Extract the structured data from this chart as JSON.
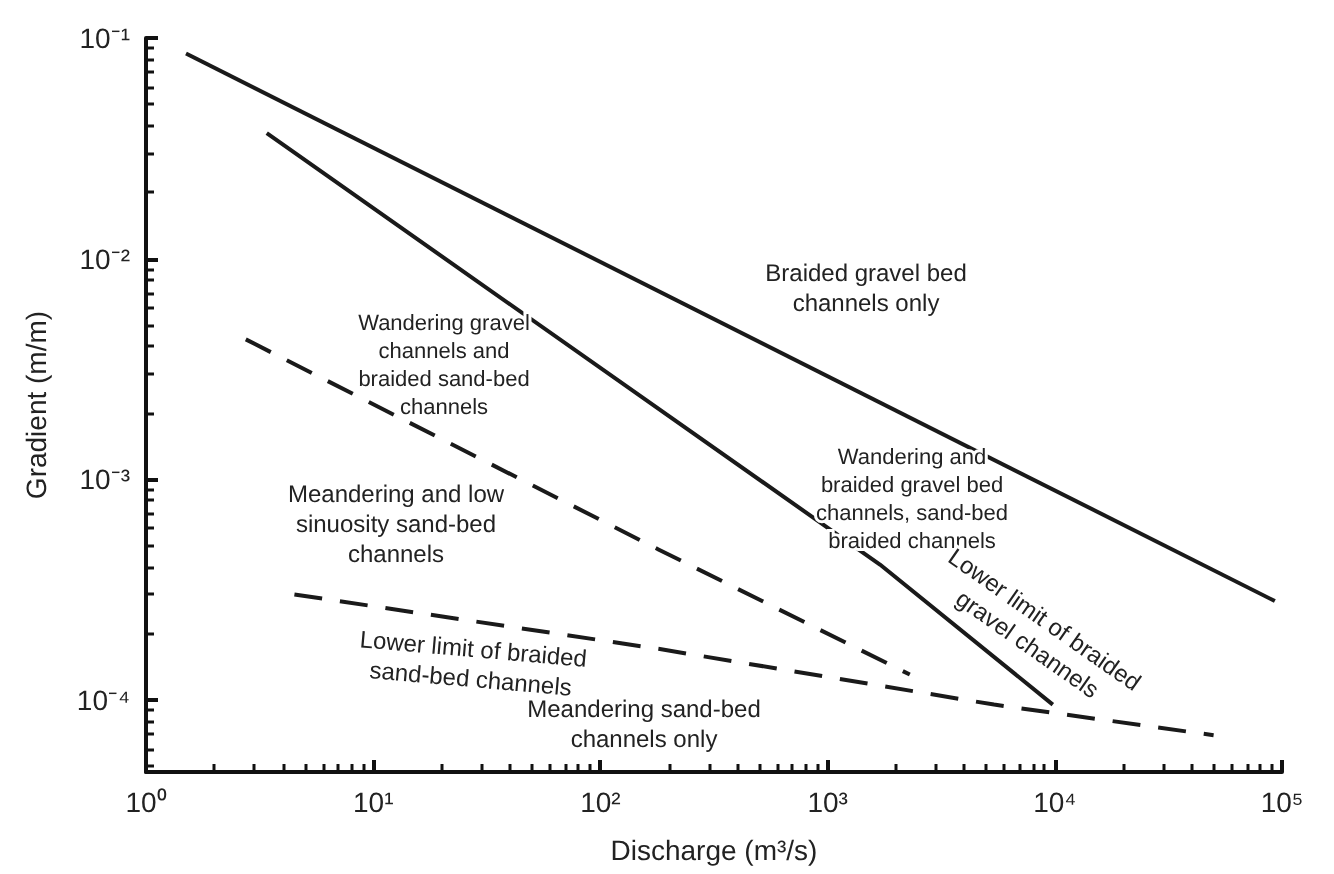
{
  "chart_data": {
    "type": "line",
    "xlabel": "Discharge (m³/s)",
    "ylabel": "Gradient (m/m)",
    "log": "xy",
    "grid": false,
    "marker": "none",
    "xlim": [
      1,
      100000
    ],
    "ylim": [
      4.7e-05,
      0.1
    ],
    "xticks": [
      {
        "value": 1,
        "label": "10⁰"
      },
      {
        "value": 10,
        "label": "10¹"
      },
      {
        "value": 100,
        "label": "10²"
      },
      {
        "value": 1000,
        "label": "10³"
      },
      {
        "value": 10000,
        "label": "10⁴"
      },
      {
        "value": 100000,
        "label": "10⁵"
      }
    ],
    "yticks": [
      {
        "value": 0.0001,
        "label": "10⁻⁴"
      },
      {
        "value": 0.001,
        "label": "10⁻³"
      },
      {
        "value": 0.01,
        "label": "10⁻²"
      },
      {
        "value": 0.1,
        "label": "10⁻¹"
      }
    ],
    "series": [
      {
        "color": "#1a1a1a",
        "line_style": "solid",
        "x": [
          1.5,
          93000
        ],
        "values": [
          0.085,
          0.00028
        ]
      },
      {
        "color": "#1a1a1a",
        "line_style": "solid",
        "x": [
          3.4,
          1700,
          9800
        ],
        "values": [
          0.037,
          0.00041,
          9.5e-05
        ]
      },
      {
        "color": "#1a1a1a",
        "line_style": "dashed",
        "x": [
          2.75,
          180,
          2300
        ],
        "values": [
          0.0043,
          0.00048,
          0.00013
        ]
      },
      {
        "color": "#1a1a1a",
        "line_style": "dashed",
        "x": [
          4.5,
          180,
          5400,
          50000
        ],
        "values": [
          0.0003,
          0.00017,
          9.5e-05,
          6.9e-05
        ]
      }
    ],
    "annotations": [
      "Braided gravel bed\nchannels only",
      "Wandering gravel\nchannels and\nbraided sand-bed\nchannels",
      "Wandering and\nbraided gravel bed\nchannels, sand-bed\nbraided channels",
      "Meandering and low\nsinuosity sand-bed\nchannels",
      "Lower limit of braided\nsand-bed channels",
      "Meandering sand-bed\nchannels only",
      "Lower limit of braided\ngravel channels"
    ]
  }
}
